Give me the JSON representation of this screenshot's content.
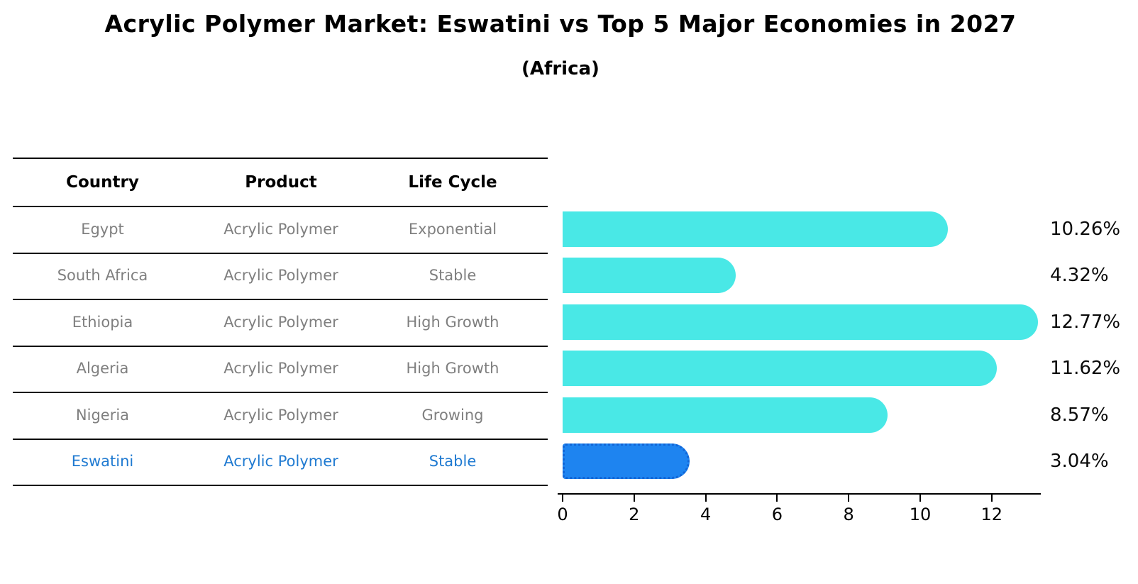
{
  "title": "Acrylic Polymer Market: Eswatini vs Top 5 Major Economies in 2027",
  "subtitle": "(Africa)",
  "table": {
    "headers": [
      "Country",
      "Product",
      "Life Cycle"
    ],
    "rows": [
      {
        "country": "Egypt",
        "product": "Acrylic Polymer",
        "life_cycle": "Exponential",
        "highlight": false
      },
      {
        "country": "South Africa",
        "product": "Acrylic Polymer",
        "life_cycle": "Stable",
        "highlight": false
      },
      {
        "country": "Ethiopia",
        "product": "Acrylic Polymer",
        "life_cycle": "High Growth",
        "highlight": false
      },
      {
        "country": "Algeria",
        "product": "Acrylic Polymer",
        "life_cycle": "High Growth",
        "highlight": false
      },
      {
        "country": "Nigeria",
        "product": "Acrylic Polymer",
        "life_cycle": "Growing",
        "highlight": false
      },
      {
        "country": "Eswatini",
        "product": "Acrylic Polymer",
        "life_cycle": "Stable",
        "highlight": true
      }
    ]
  },
  "chart_data": {
    "type": "bar",
    "orientation": "horizontal",
    "categories": [
      "Egypt",
      "South Africa",
      "Ethiopia",
      "Algeria",
      "Nigeria",
      "Eswatini"
    ],
    "values": [
      10.26,
      4.32,
      12.77,
      11.62,
      8.57,
      3.04
    ],
    "value_labels": [
      "10.26%",
      "4.32%",
      "12.77%",
      "11.62%",
      "8.57%",
      "3.04%"
    ],
    "x_ticks": [
      0,
      2,
      4,
      6,
      8,
      10,
      12
    ],
    "x_tick_labels": [
      "0",
      "2",
      "4",
      "6",
      "8",
      "10",
      "12"
    ],
    "xlim": [
      0,
      13.4
    ],
    "grid": false,
    "legend": "none",
    "bar_color": "#49e8e6",
    "highlight_bar_color": "#1e84f0",
    "highlight_border_color": "#1265d6",
    "highlight_text_color": "#1f7ad1",
    "normal_text_color": "#7f7f7f",
    "highlight_index": 5,
    "title": "Acrylic Polymer Market: Eswatini vs Top 5 Major Economies in 2027",
    "subtitle": "(Africa)",
    "xlabel": "",
    "ylabel": ""
  }
}
